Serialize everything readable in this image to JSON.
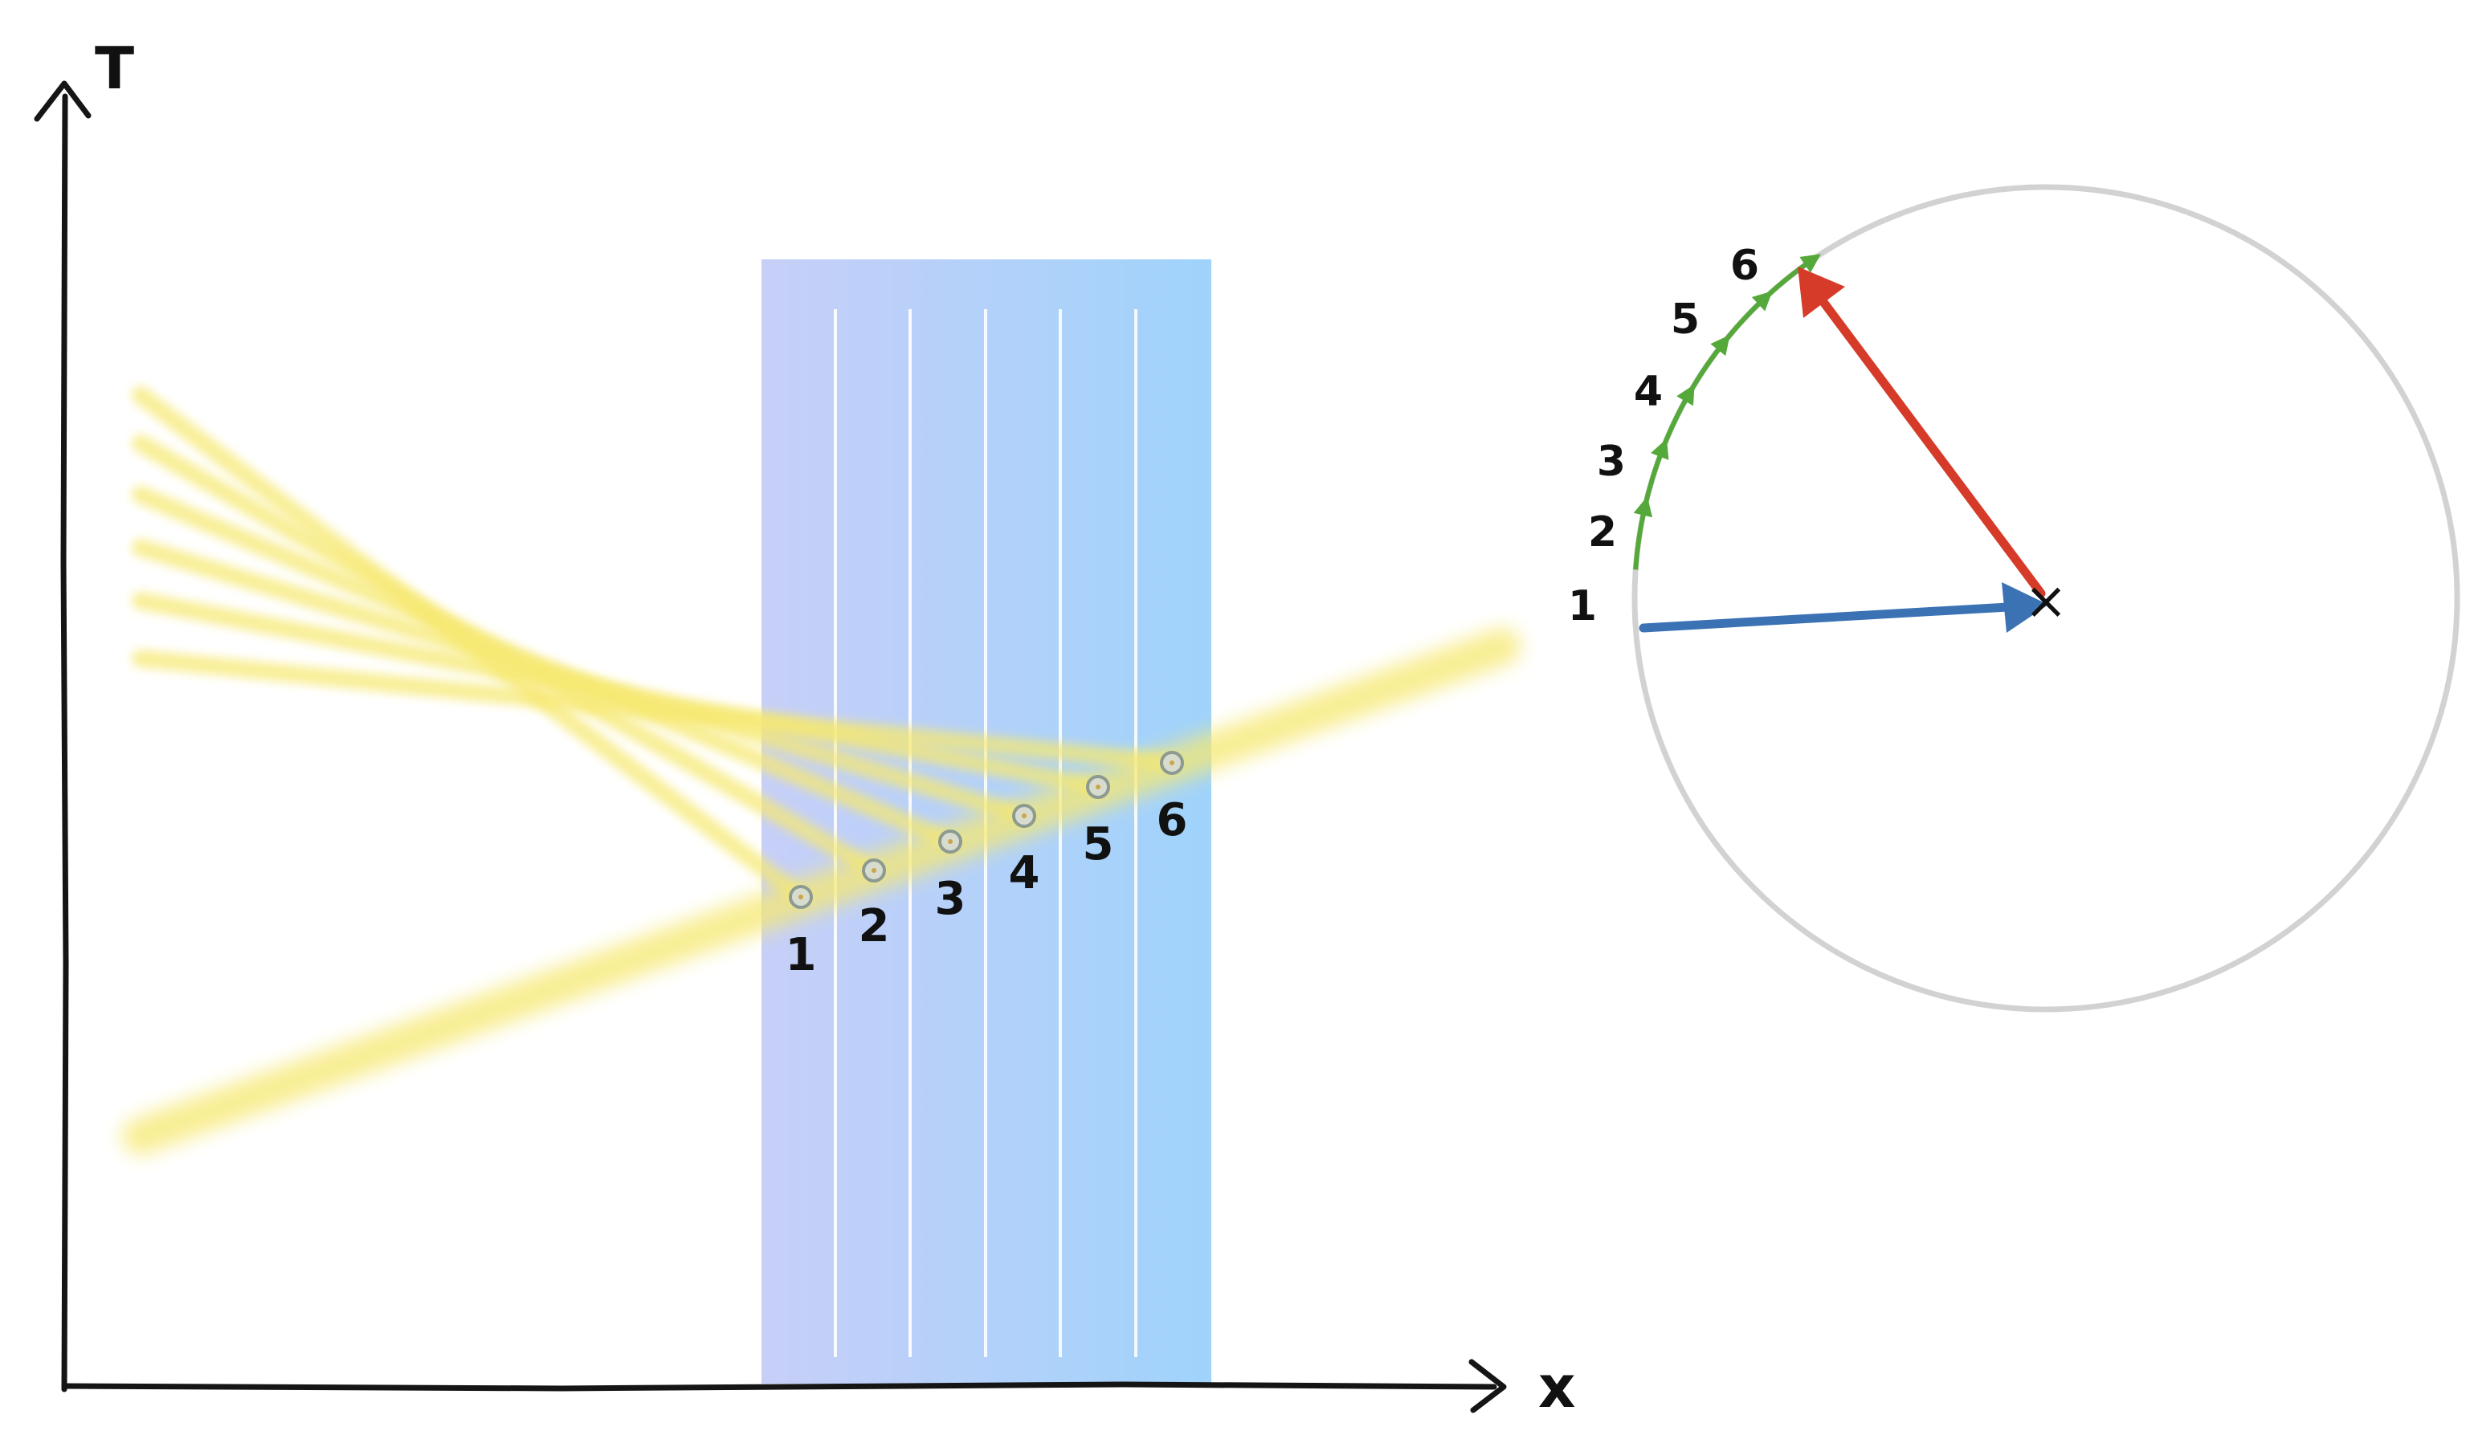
{
  "axes": {
    "vertical_label": "T",
    "horizontal_label": "x"
  },
  "slab": {
    "color_left": "#c7cff8",
    "color_right": "#9fd3fb",
    "divider_color": "#ffffff"
  },
  "beams": {
    "color": "#f6e870"
  },
  "events": [
    {
      "label": "1"
    },
    {
      "label": "2"
    },
    {
      "label": "3"
    },
    {
      "label": "4"
    },
    {
      "label": "5"
    },
    {
      "label": "6"
    }
  ],
  "phasor": {
    "circle_color": "#d2d2d2",
    "arc_color": "#55a83a",
    "initial_arrow_color": "#3a72b4",
    "final_arrow_color": "#d63b2a",
    "center_mark": "×",
    "step_labels": [
      "1",
      "2",
      "3",
      "4",
      "5",
      "6"
    ]
  }
}
